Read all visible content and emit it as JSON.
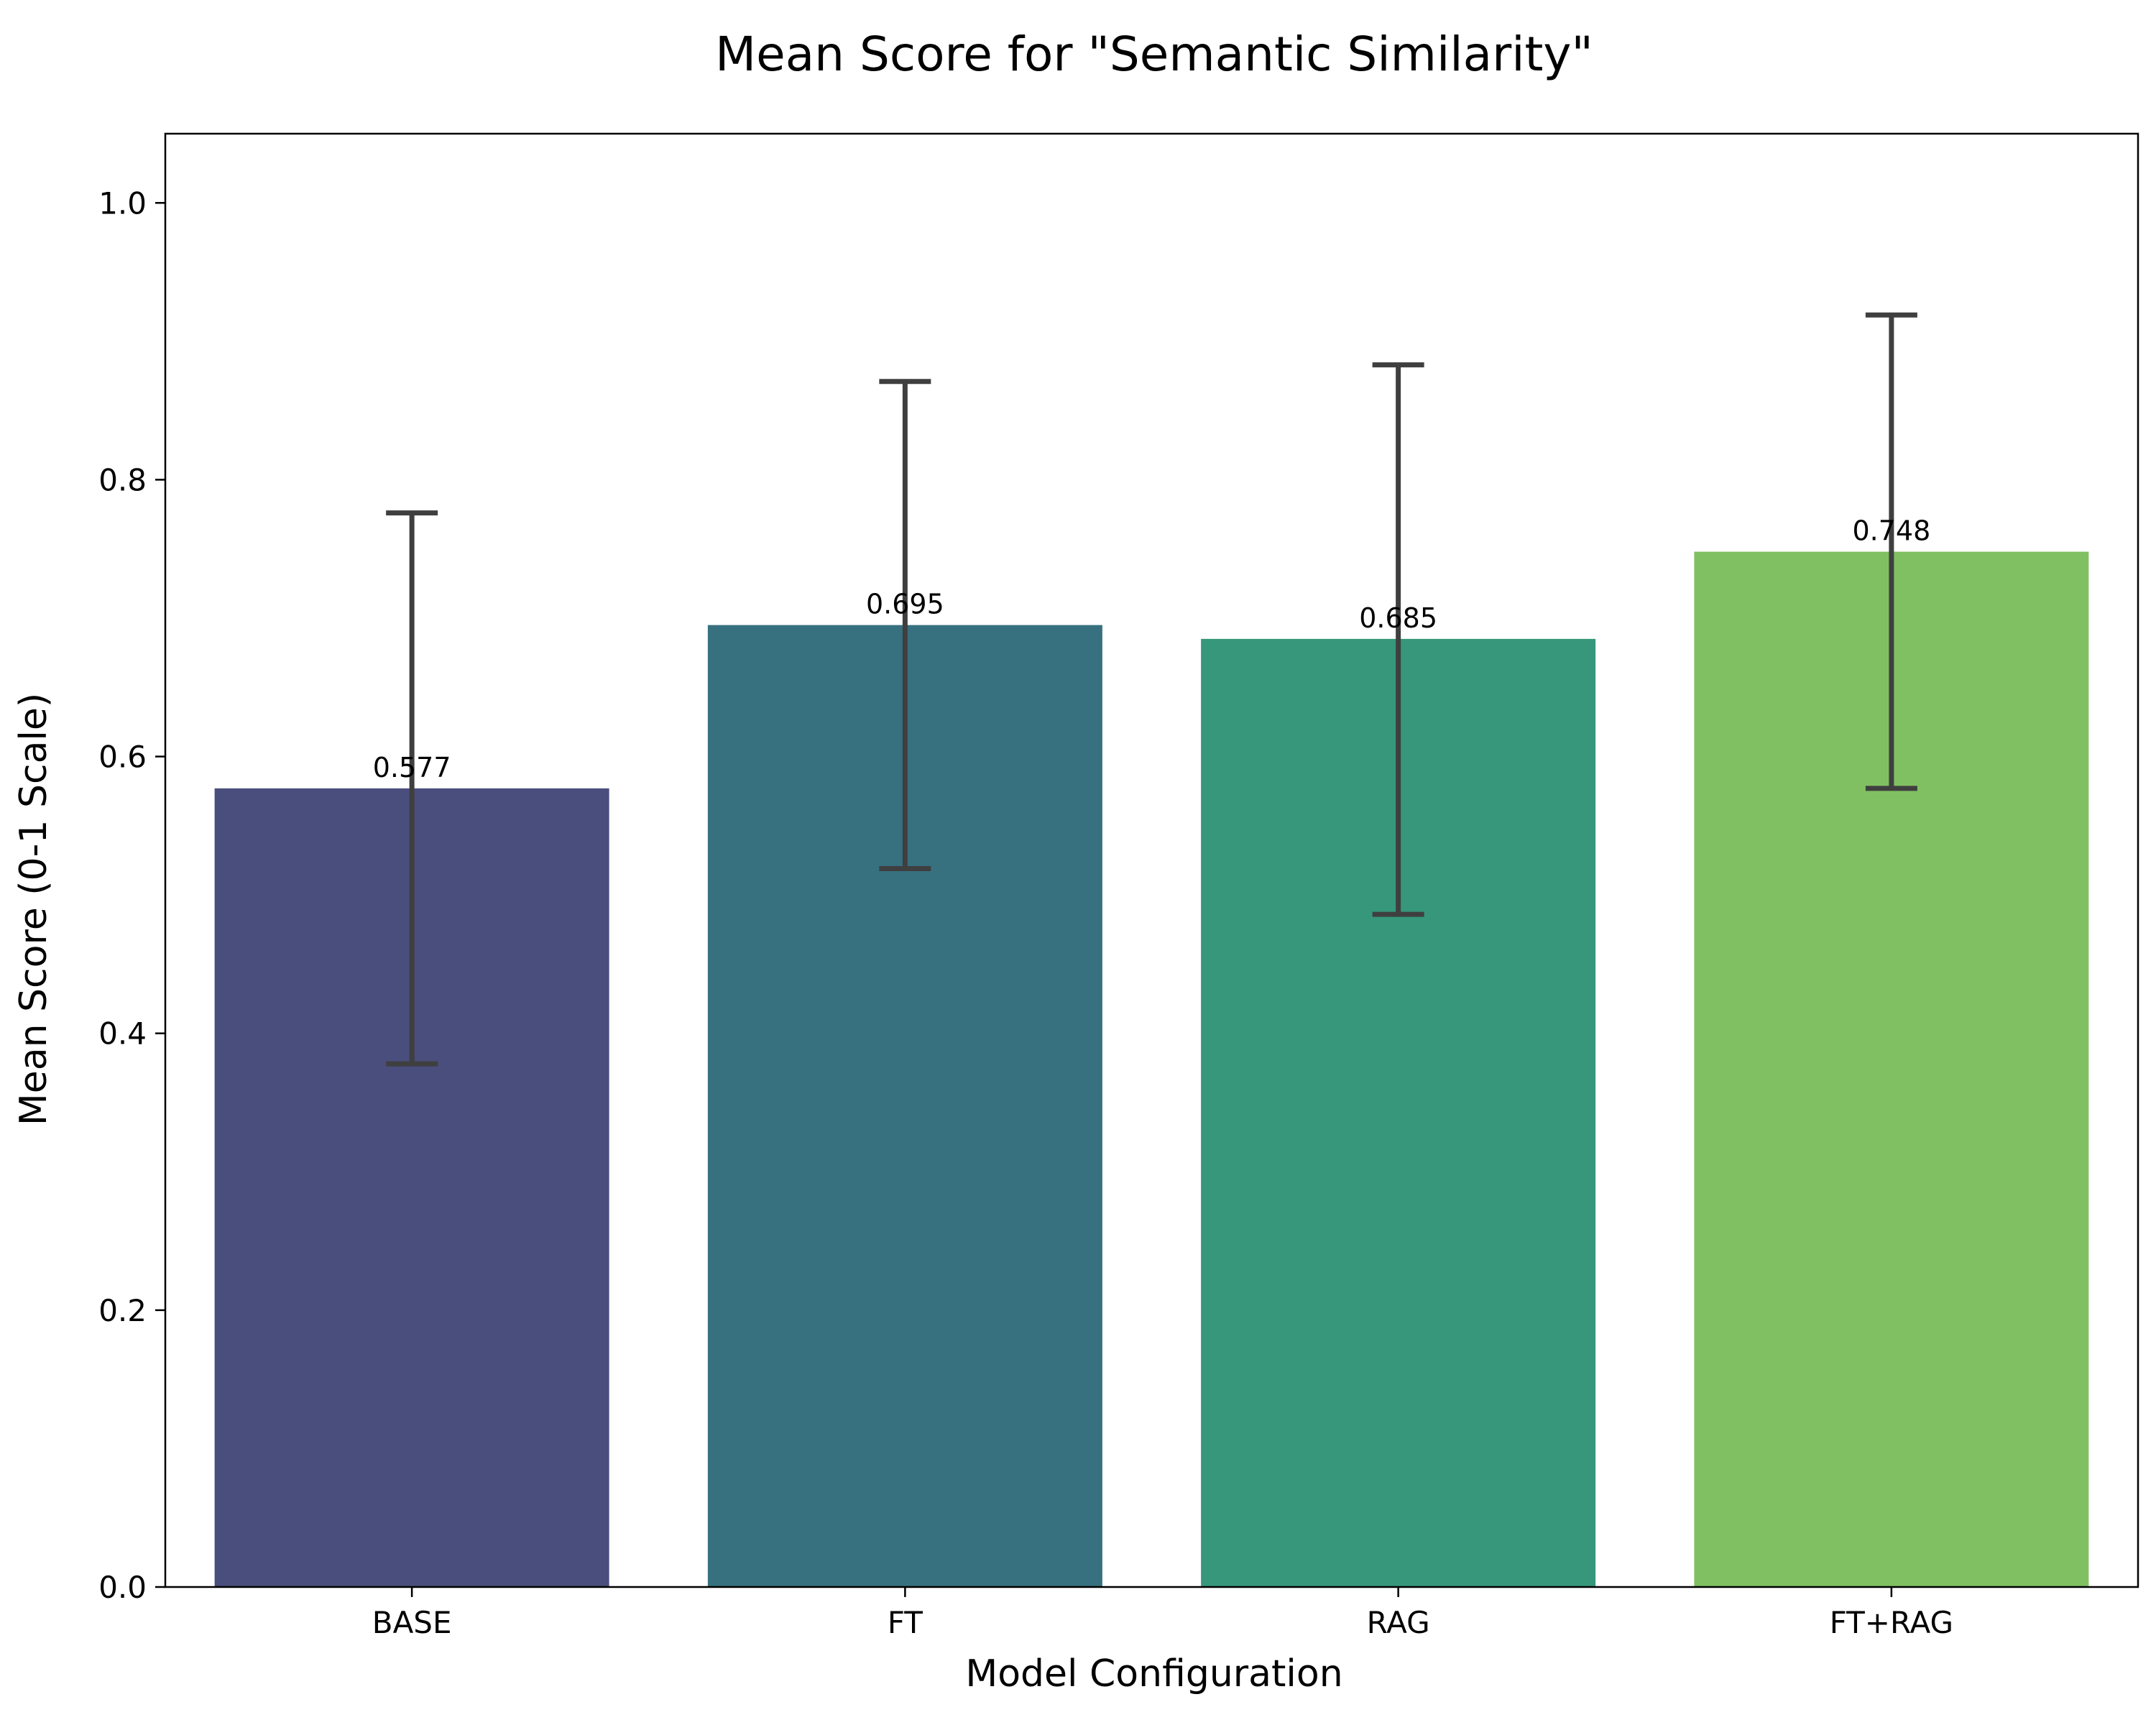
{
  "chart_data": {
    "type": "bar",
    "title": "Mean Score for \"Semantic Similarity\"",
    "xlabel": "Model Configuration",
    "ylabel": "Mean Score (0-1 Scale)",
    "categories": [
      "BASE",
      "FT",
      "RAG",
      "FT+RAG"
    ],
    "values": [
      0.577,
      0.695,
      0.685,
      0.748
    ],
    "value_labels": [
      "0.577",
      "0.695",
      "0.685",
      "0.748"
    ],
    "error_low": [
      0.378,
      0.519,
      0.486,
      0.577
    ],
    "error_high": [
      0.776,
      0.871,
      0.883,
      0.919
    ],
    "colors": [
      "#4a4e7c",
      "#37717f",
      "#36977b",
      "#81c062"
    ],
    "error_color": "#3f3f3f",
    "ylim": [
      0,
      1.05
    ],
    "yticks": [
      0.0,
      0.2,
      0.4,
      0.6,
      0.8,
      1.0
    ],
    "ytick_labels": [
      "0.0",
      "0.2",
      "0.4",
      "0.6",
      "0.8",
      "1.0"
    ],
    "grid": false,
    "legend": "none"
  }
}
